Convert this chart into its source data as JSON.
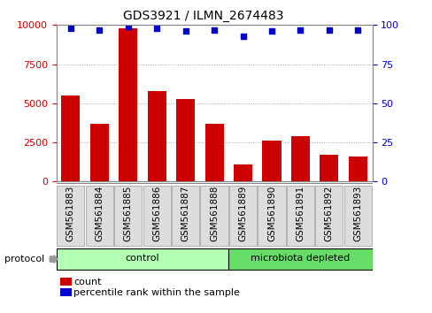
{
  "title": "GDS3921 / ILMN_2674483",
  "samples": [
    "GSM561883",
    "GSM561884",
    "GSM561885",
    "GSM561886",
    "GSM561887",
    "GSM561888",
    "GSM561889",
    "GSM561890",
    "GSM561891",
    "GSM561892",
    "GSM561893"
  ],
  "counts": [
    5500,
    3700,
    9800,
    5800,
    5300,
    3700,
    1100,
    2600,
    2900,
    1700,
    1600
  ],
  "percentile_ranks": [
    98,
    97,
    99,
    98,
    96,
    97,
    93,
    96,
    97,
    97,
    97
  ],
  "groups": [
    {
      "label": "control",
      "start": 0,
      "end": 5,
      "color": "#b3ffb3"
    },
    {
      "label": "microbiota depleted",
      "start": 6,
      "end": 10,
      "color": "#66dd66"
    }
  ],
  "bar_color": "#cc0000",
  "dot_color": "#0000cc",
  "ylim_left": [
    0,
    10000
  ],
  "ylim_right": [
    0,
    100
  ],
  "yticks_left": [
    0,
    2500,
    5000,
    7500,
    10000
  ],
  "yticks_right": [
    0,
    25,
    50,
    75,
    100
  ],
  "bar_width": 0.65,
  "bg_color": "#ffffff",
  "tick_label_color_left": "#cc0000",
  "tick_label_color_right": "#0000cc",
  "legend_count_label": "count",
  "legend_pct_label": "percentile rank within the sample",
  "protocol_label": "protocol",
  "grid_color": "#aaaaaa",
  "tick_box_color": "#dddddd",
  "tick_box_edge": "#999999"
}
